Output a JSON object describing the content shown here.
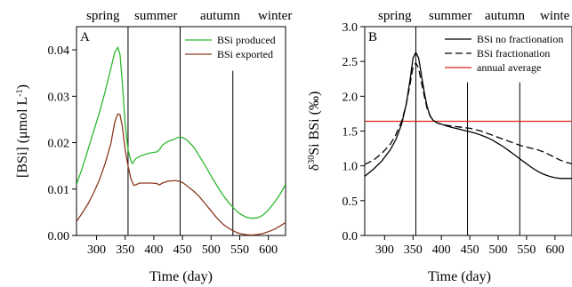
{
  "chart_data": [
    {
      "type": "line",
      "panel_label": "A",
      "ylabel_main": "[BSi] (μmol L",
      "ylabel_sup": "-1",
      "ylabel_close": ")",
      "xlabel": "Time (day)",
      "xlim": [
        265,
        630
      ],
      "ylim": [
        0,
        0.045
      ],
      "xticks": [
        300,
        350,
        400,
        450,
        500,
        550,
        600
      ],
      "yticks": [
        0.0,
        0.01,
        0.02,
        0.03,
        0.04
      ],
      "ytick_labels": [
        "0.00",
        "0.01",
        "0.02",
        "0.03",
        "0.04"
      ],
      "season_labels": [
        "spring",
        "summer",
        "autumn",
        "winter"
      ],
      "season_dividers": [
        355,
        446,
        538
      ],
      "legend_position": "top-right",
      "series": [
        {
          "name": "BSi produced",
          "color": "#2db82d",
          "x": [
            265,
            275,
            285,
            295,
            305,
            315,
            325,
            332,
            337,
            341,
            345,
            350,
            355,
            360,
            363,
            368,
            375,
            385,
            395,
            405,
            410,
            415,
            425,
            435,
            440,
            445,
            450,
            455,
            460,
            470,
            480,
            490,
            500,
            510,
            520,
            530,
            540,
            550,
            560,
            570,
            580,
            590,
            600,
            610,
            620,
            630
          ],
          "y": [
            0.011,
            0.0145,
            0.0185,
            0.0225,
            0.0265,
            0.031,
            0.036,
            0.0395,
            0.0405,
            0.039,
            0.033,
            0.024,
            0.0185,
            0.016,
            0.0155,
            0.0165,
            0.017,
            0.0175,
            0.0178,
            0.018,
            0.0185,
            0.0195,
            0.0203,
            0.0207,
            0.021,
            0.0212,
            0.0211,
            0.0208,
            0.0203,
            0.019,
            0.017,
            0.015,
            0.0128,
            0.0108,
            0.0088,
            0.0072,
            0.0058,
            0.0047,
            0.004,
            0.0037,
            0.0038,
            0.0043,
            0.0055,
            0.007,
            0.0088,
            0.011
          ]
        },
        {
          "name": "BSi exported",
          "color": "#8b3a1e",
          "x": [
            265,
            275,
            285,
            295,
            305,
            315,
            325,
            332,
            337,
            341,
            345,
            350,
            355,
            360,
            365,
            370,
            375,
            385,
            395,
            405,
            410,
            415,
            425,
            435,
            440,
            446,
            450,
            455,
            460,
            470,
            480,
            490,
            500,
            510,
            520,
            530,
            540,
            550,
            560,
            570,
            580,
            590,
            600,
            610,
            620,
            630
          ],
          "y": [
            0.003,
            0.0048,
            0.0068,
            0.0092,
            0.012,
            0.0155,
            0.0198,
            0.0245,
            0.0262,
            0.026,
            0.0235,
            0.0185,
            0.015,
            0.0122,
            0.0108,
            0.011,
            0.0113,
            0.0113,
            0.0113,
            0.0112,
            0.0109,
            0.0113,
            0.0117,
            0.0118,
            0.0118,
            0.0116,
            0.0114,
            0.011,
            0.0105,
            0.0095,
            0.0083,
            0.0068,
            0.0053,
            0.0038,
            0.0025,
            0.0016,
            0.0009,
            0.0004,
            0.0002,
            0.0001,
            0.0002,
            0.0004,
            0.0008,
            0.0013,
            0.002,
            0.0028
          ]
        }
      ]
    },
    {
      "type": "line",
      "panel_label": "B",
      "ylabel_main": "δ",
      "ylabel_sup": "30",
      "ylabel_close": "Si BSi (‰)",
      "xlabel": "Time (day)",
      "xlim": [
        265,
        630
      ],
      "ylim": [
        0,
        3.0
      ],
      "xticks": [
        300,
        350,
        400,
        450,
        500,
        550,
        600
      ],
      "yticks": [
        0.0,
        0.5,
        1.0,
        1.5,
        2.0,
        2.5,
        3.0
      ],
      "ytick_labels": [
        "0.0",
        "0.5",
        "1.0",
        "1.5",
        "2.0",
        "2.5",
        "3.0"
      ],
      "season_labels": [
        "spring",
        "summer",
        "autumn",
        "winte"
      ],
      "season_dividers": [
        355,
        446,
        538
      ],
      "legend_position": "top-right",
      "annual_average": 1.64,
      "series": [
        {
          "name": "BSi no fractionation",
          "color": "#000000",
          "dash": "solid",
          "x": [
            265,
            280,
            295,
            310,
            320,
            330,
            338,
            345,
            350,
            355,
            360,
            365,
            370,
            375,
            380,
            385,
            390,
            395,
            400,
            410,
            420,
            430,
            440,
            450,
            460,
            470,
            480,
            490,
            500,
            510,
            520,
            530,
            540,
            550,
            560,
            570,
            580,
            590,
            600,
            610,
            620,
            630
          ],
          "y": [
            0.85,
            0.95,
            1.07,
            1.23,
            1.38,
            1.6,
            1.88,
            2.25,
            2.55,
            2.63,
            2.55,
            2.3,
            2.05,
            1.85,
            1.72,
            1.66,
            1.63,
            1.61,
            1.6,
            1.57,
            1.55,
            1.53,
            1.51,
            1.49,
            1.47,
            1.44,
            1.41,
            1.37,
            1.32,
            1.27,
            1.21,
            1.15,
            1.09,
            1.03,
            0.97,
            0.92,
            0.88,
            0.85,
            0.83,
            0.82,
            0.82,
            0.82
          ]
        },
        {
          "name": "BSi fractionation",
          "color": "#000000",
          "dash": "dashed",
          "x": [
            265,
            280,
            295,
            310,
            320,
            330,
            338,
            345,
            350,
            355,
            360,
            365,
            370,
            375,
            380,
            385,
            390,
            395,
            400,
            410,
            420,
            430,
            440,
            450,
            460,
            470,
            480,
            490,
            500,
            510,
            520,
            530,
            540,
            550,
            560,
            570,
            580,
            590,
            600,
            610,
            620,
            630
          ],
          "y": [
            1.02,
            1.08,
            1.18,
            1.31,
            1.45,
            1.64,
            1.88,
            2.18,
            2.42,
            2.48,
            2.4,
            2.2,
            2.0,
            1.82,
            1.72,
            1.66,
            1.63,
            1.61,
            1.6,
            1.58,
            1.57,
            1.56,
            1.55,
            1.54,
            1.52,
            1.5,
            1.47,
            1.44,
            1.41,
            1.38,
            1.35,
            1.32,
            1.29,
            1.27,
            1.25,
            1.23,
            1.2,
            1.16,
            1.12,
            1.08,
            1.05,
            1.03
          ]
        },
        {
          "name": "annual average",
          "color": "#e0251e",
          "dash": "solid"
        }
      ]
    }
  ]
}
